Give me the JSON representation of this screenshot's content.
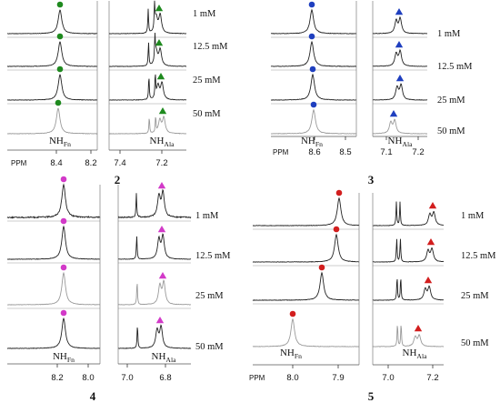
{
  "figure": {
    "colors": {
      "green": "#1f8a1f",
      "blue": "#1f3fbf",
      "magenta": "#d23ac8",
      "red": "#d21e1e",
      "trace_dark": "#222222",
      "trace_light": "#9a9a9a"
    },
    "panels": [
      {
        "number": "2",
        "concentrations": [
          "1 mM",
          "12.5 mM",
          "25 mM",
          "50 mM"
        ],
        "ppm_label": "PPM",
        "left_ticks": [
          "8.4",
          "8.2"
        ],
        "right_ticks": [
          "7.4",
          "7.2"
        ],
        "peak_labels": {
          "nh_fn": {
            "base": "NH",
            "sub": "Fn"
          },
          "nh_ala": {
            "base": "NH",
            "sub": "Ala"
          }
        },
        "marker_color": "green"
      },
      {
        "number": "3",
        "concentrations": [
          "1 mM",
          "12.5 mM",
          "25 mM",
          "50 mM"
        ],
        "ppm_label": "PPM",
        "left_ticks": [
          "8.6",
          "8.5"
        ],
        "right_ticks": [
          "7.1",
          "7.2"
        ],
        "peak_labels": {
          "nh_fn": {
            "base": "NH",
            "sub": "Fn"
          },
          "nh_ala": {
            "base": "NH",
            "sub": "Ala"
          }
        },
        "marker_color": "blue"
      },
      {
        "number": "4",
        "concentrations": [
          "1 mM",
          "12.5 mM",
          "25 mM",
          "50 mM"
        ],
        "ppm_label": "",
        "left_ticks": [
          "8.2",
          "8.0"
        ],
        "right_ticks": [
          "7.0",
          "6.8"
        ],
        "peak_labels": {
          "nh_fn": {
            "base": "NH",
            "sub": "Fn"
          },
          "nh_ala": {
            "base": "NH",
            "sub": "Ala"
          }
        },
        "marker_color": "magenta"
      },
      {
        "number": "5",
        "concentrations": [
          "1 mM",
          "12.5 mM",
          "25 mM",
          "50 mM"
        ],
        "ppm_label": "PPM",
        "left_ticks": [
          "8.0",
          "7.9"
        ],
        "right_ticks": [
          "7.0",
          "7.2"
        ],
        "peak_labels": {
          "nh_fn": {
            "base": "NH",
            "sub": "Fn"
          },
          "nh_ala": {
            "base": "NH",
            "sub": "Ala"
          }
        },
        "marker_color": "red"
      }
    ]
  }
}
